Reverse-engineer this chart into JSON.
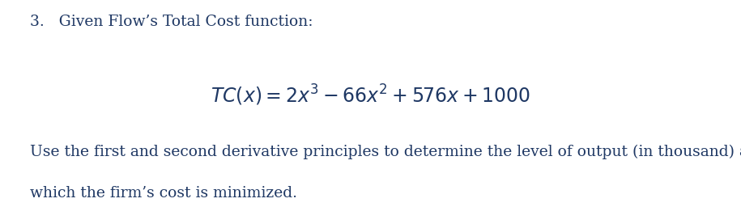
{
  "background_color": "#ffffff",
  "text_color": "#1f3864",
  "line1": "3.   Given Flow’s Total Cost function:",
  "formula": "$TC(x) = 2x^3 - 66x^2 + 576x + 1000$",
  "body_line1": "Use the first and second derivative principles to determine the level of output (in thousand) at",
  "body_line2": "which the firm’s cost is minimized.",
  "heading_fontsize": 13.5,
  "formula_fontsize": 17,
  "body_fontsize": 13.5,
  "fig_width": 9.15,
  "fig_height": 2.56,
  "dpi": 100
}
